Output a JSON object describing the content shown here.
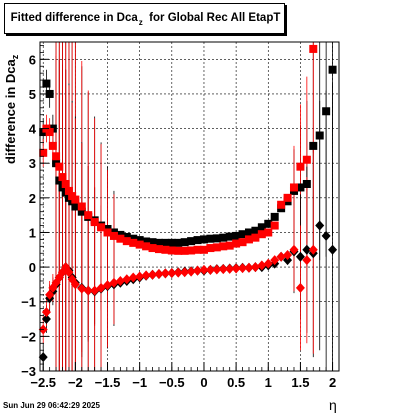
{
  "title": {
    "main": "Fitted difference in Dca",
    "sub": "z",
    "rest": "  for Global Rec All EtapT"
  },
  "footer": {
    "timestamp": "Sun Jun 29 06:42:29 2025"
  },
  "chart_data": {
    "type": "scatter",
    "xlabel": "η",
    "ylabel": {
      "main": "difference in Dca",
      "sub": "z"
    },
    "xlim": [
      -2.55,
      2.1
    ],
    "ylim": [
      -3,
      6.5
    ],
    "x_ticks": [
      "−2.5",
      "−2",
      "−1.5",
      "−1",
      "−0.5",
      "0",
      "0.5",
      "1",
      "1.5",
      "2"
    ],
    "x_tick_values": [
      -2.5,
      -2,
      -1.5,
      -1,
      -0.5,
      0,
      0.5,
      1,
      1.5,
      2
    ],
    "y_ticks": [
      "−3",
      "−2",
      "−1",
      "0",
      "1",
      "2",
      "3",
      "4",
      "5",
      "6"
    ],
    "y_tick_values": [
      -3,
      -2,
      -1,
      0,
      1,
      2,
      3,
      4,
      5,
      6
    ],
    "grid": true,
    "colors": {
      "black": "#000000",
      "red": "#ff0000"
    },
    "series": [
      {
        "marker": "square",
        "color": "#000000",
        "x": [
          -2.5,
          -2.45,
          -2.4,
          -2.35,
          -2.3,
          -2.25,
          -2.2,
          -2.15,
          -2.1,
          -2.05,
          -2.0,
          -1.9,
          -1.8,
          -1.7,
          -1.6,
          -1.5,
          -1.4,
          -1.3,
          -1.2,
          -1.1,
          -1.0,
          -0.9,
          -0.8,
          -0.7,
          -0.6,
          -0.5,
          -0.4,
          -0.3,
          -0.2,
          -0.1,
          0.0,
          0.1,
          0.2,
          0.3,
          0.4,
          0.5,
          0.6,
          0.7,
          0.8,
          0.9,
          1.0,
          1.1,
          1.2,
          1.3,
          1.4,
          1.5,
          1.6,
          1.7,
          1.8,
          1.9,
          2.0
        ],
        "y": [
          3.9,
          5.3,
          5.0,
          4.0,
          3.0,
          2.5,
          2.3,
          2.15,
          2.0,
          1.9,
          1.75,
          1.6,
          1.45,
          1.35,
          1.2,
          1.1,
          1.0,
          0.93,
          0.87,
          0.82,
          0.78,
          0.74,
          0.72,
          0.7,
          0.7,
          0.7,
          0.7,
          0.72,
          0.75,
          0.78,
          0.8,
          0.82,
          0.83,
          0.85,
          0.88,
          0.9,
          0.95,
          1.0,
          1.05,
          1.15,
          1.25,
          1.45,
          1.7,
          1.9,
          2.2,
          2.3,
          2.4,
          3.5,
          3.8,
          4.5,
          5.7
        ]
      },
      {
        "marker": "square",
        "color": "#ff0000",
        "x": [
          -2.5,
          -2.45,
          -2.4,
          -2.35,
          -2.3,
          -2.25,
          -2.2,
          -2.15,
          -2.1,
          -2.05,
          -2.0,
          -1.9,
          -1.8,
          -1.7,
          -1.6,
          -1.5,
          -1.4,
          -1.3,
          -1.2,
          -1.1,
          -1.0,
          -0.9,
          -0.8,
          -0.7,
          -0.6,
          -0.5,
          -0.4,
          -0.3,
          -0.2,
          -0.1,
          0.0,
          0.1,
          0.2,
          0.3,
          0.4,
          0.5,
          0.6,
          0.7,
          0.8,
          0.9,
          1.0,
          1.1,
          1.2,
          1.3,
          1.4,
          1.5,
          1.6,
          1.7
        ],
        "y": [
          3.3,
          4.0,
          3.9,
          3.5,
          3.2,
          2.9,
          2.6,
          2.4,
          2.2,
          2.05,
          1.95,
          1.75,
          1.5,
          1.3,
          1.15,
          1.0,
          0.9,
          0.82,
          0.75,
          0.7,
          0.65,
          0.6,
          0.55,
          0.52,
          0.5,
          0.48,
          0.47,
          0.47,
          0.48,
          0.5,
          0.5,
          0.55,
          0.57,
          0.6,
          0.62,
          0.68,
          0.72,
          0.8,
          0.85,
          0.95,
          1.0,
          1.2,
          1.8,
          2.0,
          2.3,
          2.9,
          3.1,
          6.3
        ]
      },
      {
        "marker": "diamond",
        "color": "#000000",
        "x": [
          -2.5,
          -2.45,
          -2.4,
          -2.35,
          -2.3,
          -2.25,
          -2.2,
          -2.15,
          -2.1,
          -2.05,
          -2.0,
          -1.9,
          -1.8,
          -1.7,
          -1.6,
          -1.5,
          -1.4,
          -1.3,
          -1.2,
          -1.1,
          -1.0,
          -0.9,
          -0.8,
          -0.7,
          -0.6,
          -0.5,
          -0.4,
          -0.3,
          -0.2,
          -0.1,
          0.0,
          0.1,
          0.2,
          0.3,
          0.4,
          0.5,
          0.6,
          0.7,
          0.8,
          0.9,
          1.0,
          1.1,
          1.2,
          1.3,
          1.4,
          1.5,
          1.6,
          1.7,
          1.8,
          1.9,
          2.0
        ],
        "y": [
          -2.6,
          -1.5,
          -0.9,
          -0.7,
          -0.5,
          -0.3,
          -0.15,
          0.0,
          -0.1,
          -0.3,
          -0.45,
          -0.6,
          -0.68,
          -0.7,
          -0.62,
          -0.55,
          -0.5,
          -0.45,
          -0.4,
          -0.35,
          -0.3,
          -0.25,
          -0.22,
          -0.2,
          -0.18,
          -0.17,
          -0.15,
          -0.13,
          -0.12,
          -0.1,
          -0.1,
          -0.08,
          -0.06,
          -0.05,
          -0.04,
          -0.03,
          -0.02,
          -0.02,
          0.0,
          0.0,
          0.05,
          0.1,
          0.3,
          0.2,
          0.45,
          0.3,
          0.5,
          0.4,
          1.2,
          0.9,
          0.5
        ]
      },
      {
        "marker": "diamond",
        "color": "#ff0000",
        "x": [
          -2.5,
          -2.45,
          -2.4,
          -2.35,
          -2.3,
          -2.25,
          -2.2,
          -2.15,
          -2.1,
          -2.05,
          -2.0,
          -1.9,
          -1.8,
          -1.7,
          -1.6,
          -1.5,
          -1.4,
          -1.3,
          -1.2,
          -1.1,
          -1.0,
          -0.9,
          -0.8,
          -0.7,
          -0.6,
          -0.5,
          -0.4,
          -0.3,
          -0.2,
          -0.1,
          0.0,
          0.1,
          0.2,
          0.3,
          0.4,
          0.5,
          0.6,
          0.7,
          0.8,
          0.9,
          1.0,
          1.1,
          1.2,
          1.3,
          1.4,
          1.5,
          1.6,
          1.7
        ],
        "y": [
          -1.8,
          -1.3,
          -0.8,
          -0.6,
          -0.45,
          -0.3,
          -0.15,
          0.0,
          -0.15,
          -0.35,
          -0.5,
          -0.62,
          -0.68,
          -0.68,
          -0.6,
          -0.52,
          -0.45,
          -0.4,
          -0.35,
          -0.3,
          -0.27,
          -0.24,
          -0.22,
          -0.2,
          -0.18,
          -0.17,
          -0.16,
          -0.15,
          -0.13,
          -0.1,
          -0.08,
          -0.08,
          -0.07,
          -0.06,
          -0.05,
          -0.04,
          -0.03,
          -0.02,
          0.0,
          0.05,
          0.1,
          0.2,
          0.3,
          0.35,
          0.5,
          -0.6,
          0.2,
          0.5
        ]
      }
    ]
  }
}
